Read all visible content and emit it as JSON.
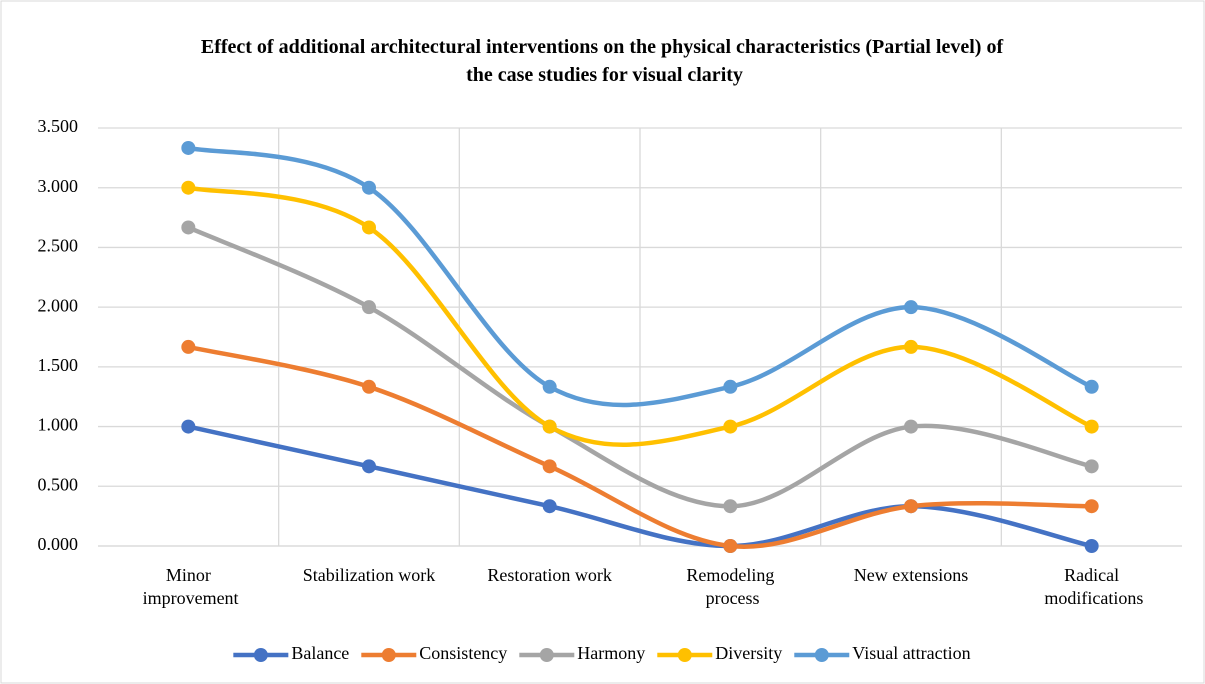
{
  "chart_data": {
    "type": "line",
    "title": "Effect of additional architectural interventions on the physical characteristics (Partial level) of the case studies for visual clarity",
    "categories": [
      "Minor improvement",
      "Stabilization work",
      "Restoration work",
      "Remodeling process",
      "New extensions",
      "Radical modifications"
    ],
    "series": [
      {
        "name": "Balance",
        "color": "#4472c4",
        "values": [
          1.0,
          0.667,
          0.333,
          0,
          0.333,
          0
        ]
      },
      {
        "name": "Consistency",
        "color": "#ed7d31",
        "values": [
          1.667,
          1.333,
          0.667,
          0,
          0.333,
          0.333
        ]
      },
      {
        "name": "Harmony",
        "color": "#a5a5a5",
        "values": [
          2.667,
          2.0,
          1.0,
          0.333,
          1.0,
          0.667
        ]
      },
      {
        "name": "Diversity",
        "color": "#ffc000",
        "values": [
          3.0,
          2.667,
          1.0,
          1.0,
          1.667,
          1.0
        ]
      },
      {
        "name": "Visual attraction",
        "color": "#5b9bd5",
        "values": [
          3.333,
          3.0,
          1.333,
          1.333,
          2.0,
          1.333
        ]
      }
    ],
    "ylim": [
      0,
      3.5
    ],
    "yticks": [
      {
        "value": 0,
        "label": "0.000"
      },
      {
        "value": 0.5,
        "label": "0.500"
      },
      {
        "value": 1,
        "label": "1.000"
      },
      {
        "value": 1.5,
        "label": "1.500"
      },
      {
        "value": 2,
        "label": "2.000"
      },
      {
        "value": 2.5,
        "label": "2.500"
      },
      {
        "value": 3,
        "label": "3.000"
      },
      {
        "value": 3.5,
        "label": "3.500"
      }
    ],
    "grid": true,
    "smooth": true,
    "markers": true,
    "legend": "bottom"
  }
}
